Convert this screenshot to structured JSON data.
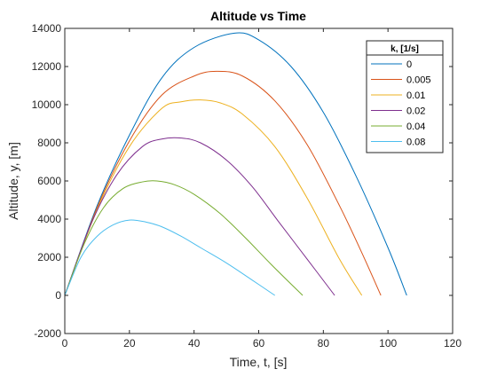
{
  "chart_data": {
    "type": "line",
    "title": "Altitude vs Time",
    "xlabel": "Time, t, [s]",
    "ylabel": "Altitude, y, [m]",
    "xlim": [
      0,
      120
    ],
    "ylim": [
      -2000,
      14000
    ],
    "xticks": [
      0,
      20,
      40,
      60,
      80,
      100,
      120
    ],
    "yticks": [
      -2000,
      0,
      2000,
      4000,
      6000,
      8000,
      10000,
      12000,
      14000
    ],
    "grid": false,
    "legend": {
      "title": "k, [1/s]",
      "placement": "top-right"
    },
    "series": [
      {
        "name": "0",
        "color": "#0072BD",
        "x": [
          0,
          10,
          20,
          30,
          40,
          52.5,
          60,
          70,
          80,
          90,
          100,
          105.8
        ],
        "y": [
          0,
          4700,
          8400,
          11400,
          13000,
          13750,
          13400,
          12000,
          9600,
          6300,
          2500,
          0
        ]
      },
      {
        "name": "0.005",
        "color": "#D95319",
        "x": [
          0,
          10,
          20,
          30,
          40,
          47,
          55,
          65,
          75,
          85,
          92,
          97.8
        ],
        "y": [
          0,
          4600,
          8100,
          10500,
          11500,
          11750,
          11500,
          10200,
          7900,
          4700,
          2200,
          0
        ]
      },
      {
        "name": "0.01",
        "color": "#EDB120",
        "x": [
          0,
          10,
          20,
          30,
          36,
          42,
          48,
          55,
          65,
          75,
          85,
          91.9
        ],
        "y": [
          0,
          4500,
          7800,
          9800,
          10150,
          10250,
          10100,
          9500,
          7800,
          5100,
          1900,
          0
        ]
      },
      {
        "name": "0.02",
        "color": "#7E2F8E",
        "x": [
          0,
          8,
          16,
          24,
          30,
          36,
          42,
          50,
          58,
          66,
          75,
          83.5
        ],
        "y": [
          0,
          3700,
          6300,
          7800,
          8200,
          8250,
          8000,
          7100,
          5700,
          3900,
          1900,
          0
        ]
      },
      {
        "name": "0.04",
        "color": "#77AC30",
        "x": [
          0,
          6,
          12,
          18,
          24,
          28.5,
          34,
          40,
          48,
          56,
          64,
          73.6
        ],
        "y": [
          0,
          2700,
          4600,
          5600,
          5950,
          6000,
          5800,
          5300,
          4300,
          3000,
          1600,
          0
        ]
      },
      {
        "name": "0.08",
        "color": "#4DBEEE",
        "x": [
          0,
          5,
          10,
          15,
          20,
          25,
          30,
          36,
          42,
          50,
          58,
          65
        ],
        "y": [
          0,
          2000,
          3100,
          3700,
          3950,
          3850,
          3600,
          3100,
          2500,
          1700,
          800,
          0
        ]
      }
    ]
  }
}
